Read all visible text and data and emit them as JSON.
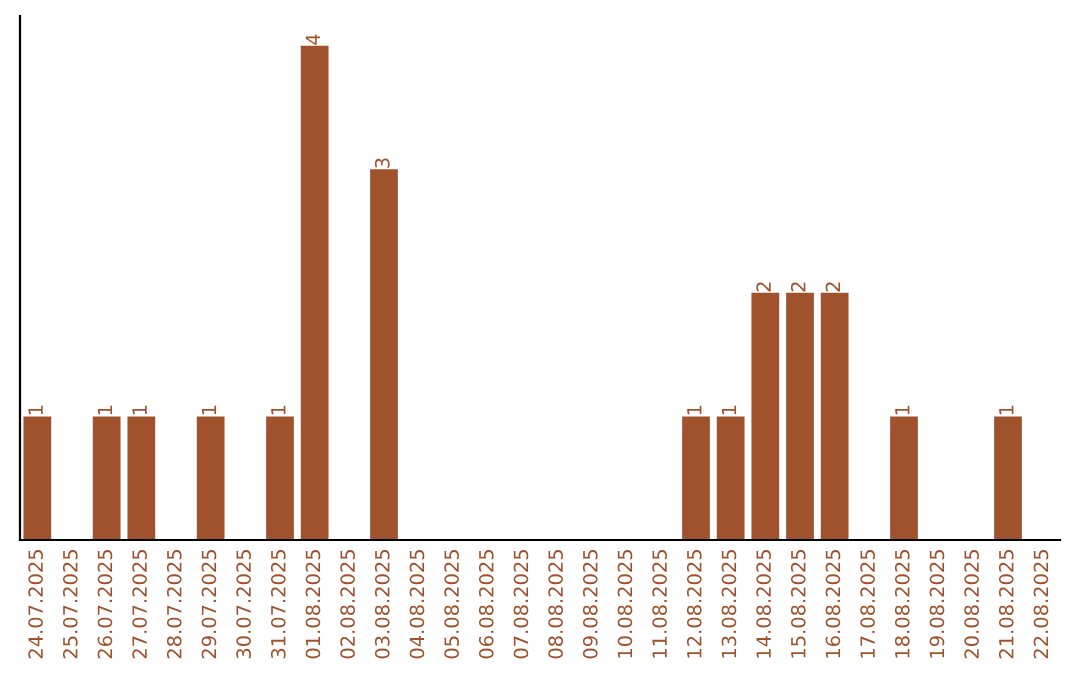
{
  "chart_data": {
    "type": "bar",
    "categories": [
      "24.07.2025",
      "25.07.2025",
      "26.07.2025",
      "27.07.2025",
      "28.07.2025",
      "29.07.2025",
      "30.07.2025",
      "31.07.2025",
      "01.08.2025",
      "02.08.2025",
      "03.08.2025",
      "04.08.2025",
      "05.08.2025",
      "06.08.2025",
      "07.08.2025",
      "08.08.2025",
      "09.08.2025",
      "10.08.2025",
      "11.08.2025",
      "12.08.2025",
      "13.08.2025",
      "14.08.2025",
      "15.08.2025",
      "16.08.2025",
      "17.08.2025",
      "18.08.2025",
      "19.08.2025",
      "20.08.2025",
      "21.08.2025",
      "22.08.2025"
    ],
    "values": [
      1,
      0,
      1,
      1,
      0,
      1,
      0,
      1,
      4,
      0,
      3,
      0,
      0,
      0,
      0,
      0,
      0,
      0,
      0,
      1,
      1,
      2,
      2,
      2,
      0,
      1,
      0,
      0,
      1,
      0
    ],
    "value_labels": [
      "1",
      null,
      "1",
      "1",
      null,
      "1",
      null,
      "1",
      "4",
      null,
      "3",
      null,
      null,
      null,
      null,
      null,
      null,
      null,
      null,
      "1",
      "1",
      "2",
      "2",
      "2",
      null,
      "1",
      null,
      null,
      "1",
      null
    ],
    "color": "#a0522d",
    "grid": false,
    "legend": false
  }
}
